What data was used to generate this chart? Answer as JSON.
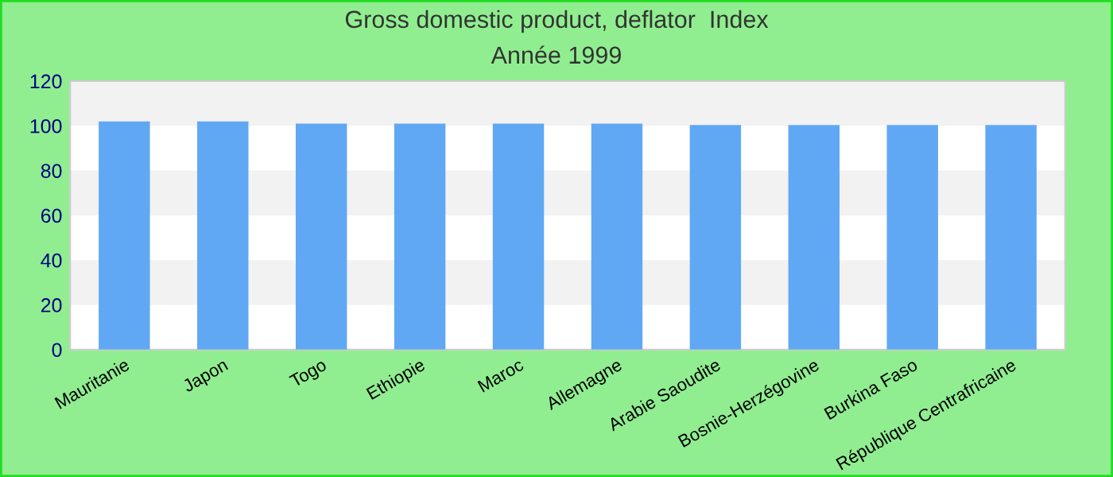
{
  "chart_data": {
    "type": "bar",
    "title": "Gross domestic product, deflator  Index",
    "subtitle": "Année 1999",
    "categories": [
      "Mauritanie",
      "Japon",
      "Togo",
      "Ethiopie",
      "Maroc",
      "Allemagne",
      "Arabie Saoudite",
      "Bosnie-Herzégovine",
      "Burkina Faso",
      "République Centrafricaine"
    ],
    "values": [
      102,
      102,
      101,
      101,
      101,
      101,
      100.4,
      100.4,
      100.4,
      100.4
    ],
    "color": "#60a8f4",
    "ylim": [
      0,
      120
    ],
    "yticks": [
      0,
      20,
      40,
      60,
      80,
      100,
      120
    ],
    "bands": [
      {
        "axis": "y",
        "from": 20,
        "to": 40,
        "color": "#f2f2f2"
      },
      {
        "axis": "y",
        "from": 60,
        "to": 80,
        "color": "#f2f2f2"
      },
      {
        "axis": "y",
        "from": 100,
        "to": 120,
        "color": "#f2f2f2"
      }
    ],
    "grid": false,
    "legend": false
  }
}
